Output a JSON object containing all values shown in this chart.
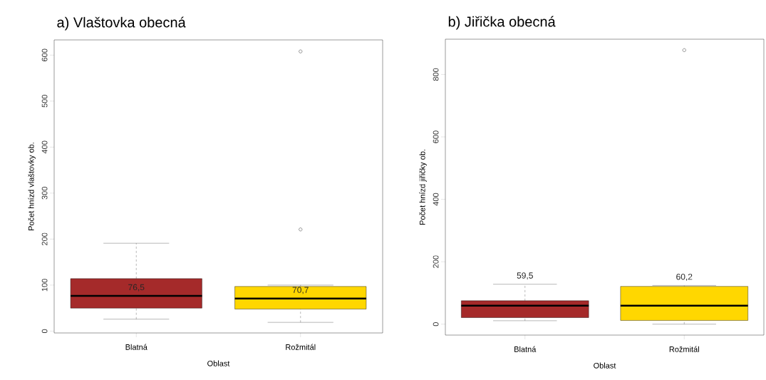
{
  "chart_data": [
    {
      "type": "box",
      "title": "a) Vlaštovka obecná",
      "xlabel": "Oblast",
      "ylabel": "Počet hnízd vlaštovky ob.",
      "categories": [
        "Blatná",
        "Rožmitál"
      ],
      "colors": [
        "#a52a2a",
        "#ffd700"
      ],
      "boxes": [
        {
          "low": 26,
          "q1": 50,
          "median": 76.5,
          "q3": 114,
          "high": 191
        },
        {
          "low": 19,
          "q1": 48,
          "median": 70.7,
          "q3": 97,
          "high": 100,
          "outliers": [
            221,
            608
          ]
        }
      ],
      "ylim": [
        -4,
        633
      ],
      "yticks": [
        0,
        100,
        200,
        300,
        400,
        500,
        600
      ],
      "annotations": [
        {
          "text": "76,5",
          "x": "Blatná",
          "y": 76.5
        },
        {
          "text": "70,7",
          "x": "Rožmitál",
          "y": 70.7
        }
      ]
    },
    {
      "type": "box",
      "title": "b) Jiřička obecná",
      "xlabel": "Oblast",
      "ylabel": "Počet hnízd jiřičky ob.",
      "categories": [
        "Blatná",
        "Rožmitál"
      ],
      "colors": [
        "#a52a2a",
        "#ffd700"
      ],
      "boxes": [
        {
          "low": 11,
          "q1": 21,
          "median": 59,
          "q3": 75,
          "high": 128
        },
        {
          "low": 0,
          "q1": 12,
          "median": 59,
          "q3": 121,
          "high": 124,
          "outliers": [
            878
          ]
        }
      ],
      "ylim": [
        -35,
        913
      ],
      "yticks": [
        0,
        200,
        400,
        600,
        800
      ],
      "annotations": [
        {
          "text": "59,5",
          "x": "Blatná",
          "y": 128
        },
        {
          "text": "60,2",
          "x": "Rožmitál",
          "y": 124
        }
      ]
    }
  ]
}
